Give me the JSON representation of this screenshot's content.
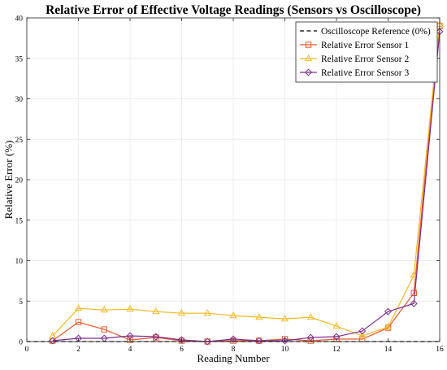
{
  "chart_data": {
    "type": "line",
    "title": "Relative Error of Effective Voltage Readings (Sensors vs Oscilloscope)",
    "xlabel": "Reading Number",
    "ylabel": "Relative Error (%)",
    "xlim": [
      0,
      16
    ],
    "ylim": [
      0,
      40
    ],
    "xticks": [
      "0",
      "2",
      "4",
      "6",
      "8",
      "10",
      "12",
      "14",
      "16"
    ],
    "yticks": [
      "0",
      "5",
      "10",
      "15",
      "20",
      "25",
      "30",
      "35",
      "40"
    ],
    "grid": true,
    "legend_position": "top-right",
    "series": [
      {
        "name": "Oscilloscope Reference (0%)",
        "color": "#000000",
        "style": "dashed",
        "marker": "none",
        "x": [
          0,
          16
        ],
        "y": [
          0,
          0
        ]
      },
      {
        "name": "Relative Error Sensor 1",
        "color": "#E8582A",
        "style": "solid",
        "marker": "square",
        "x": [
          1,
          2,
          3,
          4,
          5,
          6,
          7,
          8,
          9,
          10,
          11,
          12,
          13,
          14,
          15,
          16
        ],
        "y": [
          0.1,
          2.4,
          1.5,
          0.2,
          0.5,
          0.1,
          0.0,
          0.1,
          0.1,
          0.3,
          0.1,
          0.3,
          0.3,
          1.7,
          6.0,
          39.0
        ]
      },
      {
        "name": "Relative Error Sensor 2",
        "color": "#F5B71E",
        "style": "solid",
        "marker": "triangle",
        "x": [
          1,
          2,
          3,
          4,
          5,
          6,
          7,
          8,
          9,
          10,
          11,
          12,
          13,
          14,
          15,
          16
        ],
        "y": [
          0.7,
          4.1,
          3.9,
          4.0,
          3.7,
          3.5,
          3.5,
          3.2,
          3.0,
          2.8,
          3.0,
          1.9,
          0.7,
          1.8,
          8.2,
          39.2
        ]
      },
      {
        "name": "Relative Error Sensor 3",
        "color": "#7E2F8E",
        "style": "solid",
        "marker": "diamond",
        "x": [
          1,
          2,
          3,
          4,
          5,
          6,
          7,
          8,
          9,
          10,
          11,
          12,
          13,
          14,
          15,
          16
        ],
        "y": [
          0.1,
          0.4,
          0.4,
          0.7,
          0.6,
          0.2,
          0.0,
          0.3,
          0.1,
          0.1,
          0.5,
          0.6,
          1.3,
          3.7,
          4.7,
          38.3
        ]
      }
    ]
  }
}
